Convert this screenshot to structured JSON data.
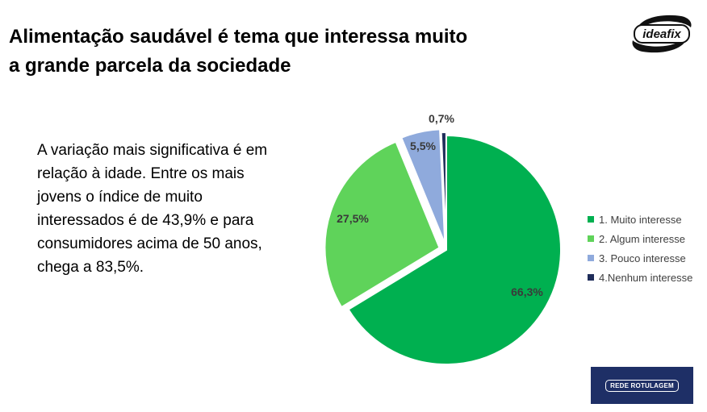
{
  "header": {
    "title_line1": "Alimentação saudável é tema que interessa muito",
    "title_line2": "a grande parcela da sociedade"
  },
  "body_text": "A variação mais significativa é em relação à idade. Entre os mais jovens o índice de muito interessados é de 43,9% e para consumidores acima de 50 anos, chega a 83,5%.",
  "logo": {
    "text": "ideafix"
  },
  "badge": {
    "text": "REDE ROTULAGEM"
  },
  "chart_data": {
    "type": "pie",
    "title": "",
    "categories": [
      "1. Muito interesse",
      "2. Algum interesse",
      "3. Pouco interesse",
      "4.Nenhum interesse"
    ],
    "values": [
      66.3,
      27.5,
      5.5,
      0.7
    ],
    "labels": [
      "66,3%",
      "27,5%",
      "5,5%",
      "0,7%"
    ],
    "colors": [
      "#00b050",
      "#5fd35a",
      "#8faadc",
      "#1f2d5a"
    ],
    "legend_position": "right"
  }
}
